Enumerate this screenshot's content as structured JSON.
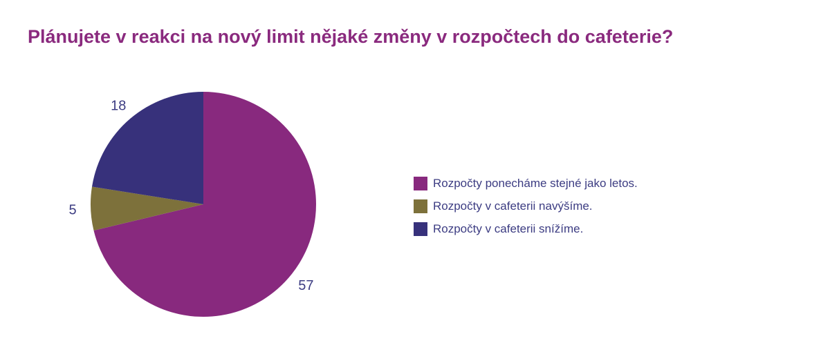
{
  "chart_data": {
    "type": "pie",
    "title": "Plánujete v reakci na nový limit nějaké změny v rozpočtech do cafeterie?",
    "categories": [
      "Rozpočty ponecháme stejné jako letos.",
      "Rozpočty v cafeterii navýšíme.",
      "Rozpočty v cafeterii snížíme."
    ],
    "values": [
      57,
      5,
      18
    ],
    "data_labels": [
      "57",
      "5",
      "18"
    ],
    "colors": [
      "#88297e",
      "#7d713b",
      "#37317b"
    ],
    "legend_position": "right",
    "start_angle": "12 o'clock",
    "direction": "clockwise"
  }
}
